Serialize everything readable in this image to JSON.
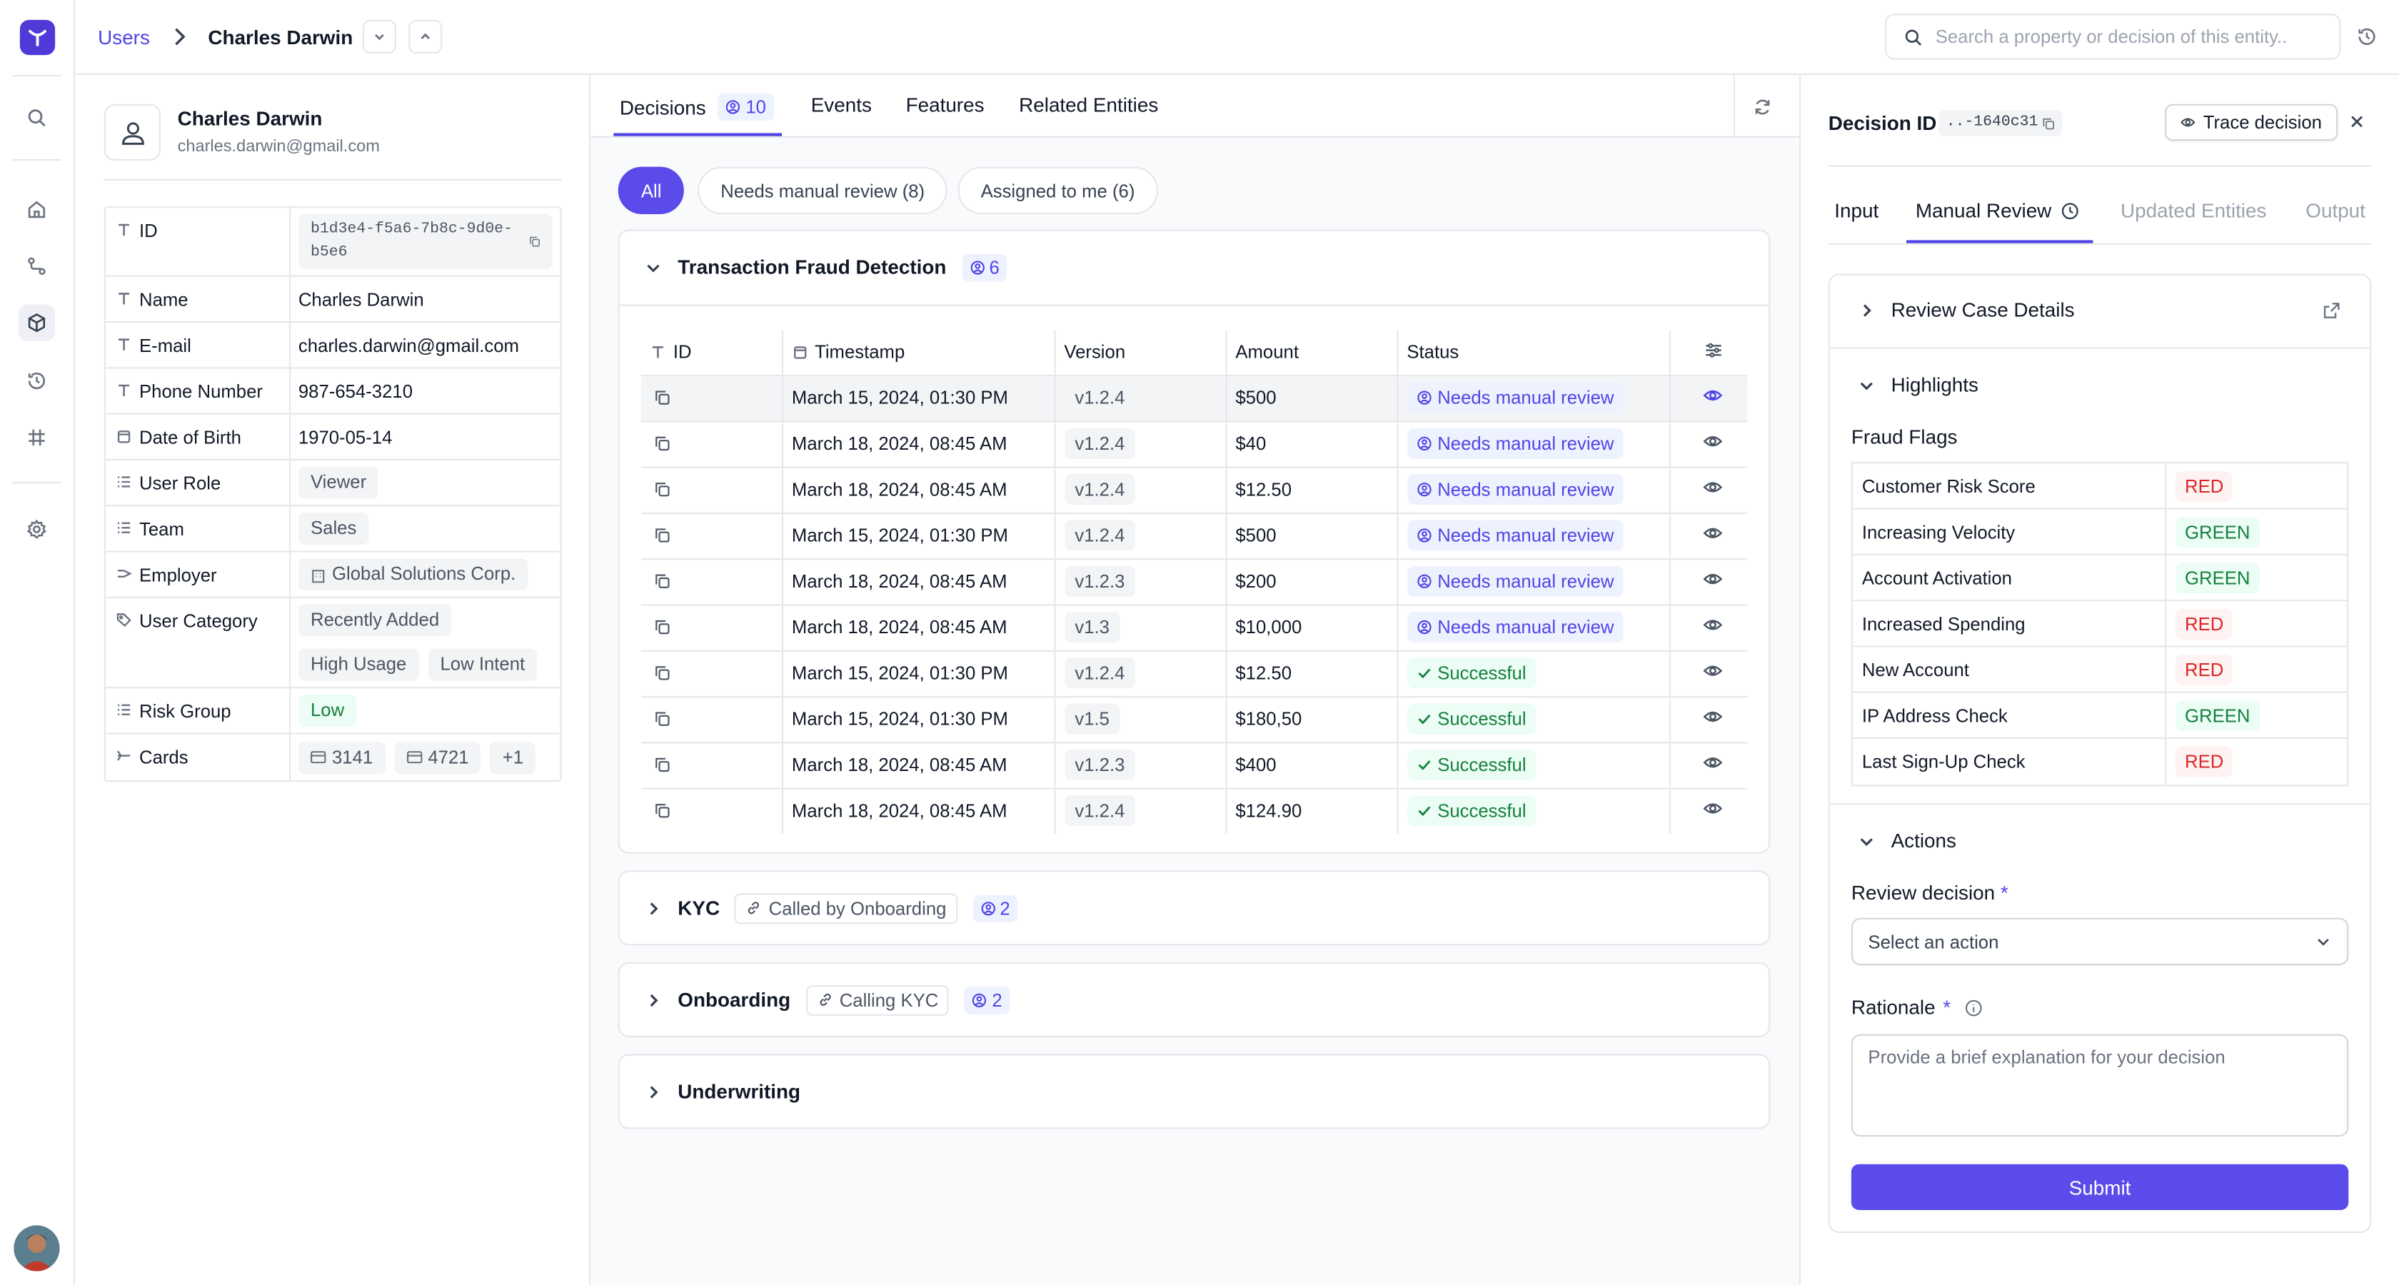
{
  "breadcrumb": {
    "parent": "Users",
    "current": "Charles Darwin"
  },
  "search": {
    "placeholder": "Search a property or decision of this entity.."
  },
  "profile": {
    "name": "Charles Darwin",
    "email": "charles.darwin@gmail.com",
    "properties": [
      {
        "key": "ID",
        "icon": "text-icon",
        "value": "b1d3e4-f5a6-7b8c-9d0e-b5e6"
      },
      {
        "key": "Name",
        "icon": "text-icon",
        "value": "Charles Darwin"
      },
      {
        "key": "E-mail",
        "icon": "text-icon",
        "value": "charles.darwin@gmail.com"
      },
      {
        "key": "Phone Number",
        "icon": "text-icon",
        "value": "987-654-3210"
      },
      {
        "key": "Date of Birth",
        "icon": "calendar-icon",
        "value": "1970-05-14"
      },
      {
        "key": "User Role",
        "icon": "list-icon",
        "value": "Viewer"
      },
      {
        "key": "Team",
        "icon": "list-icon",
        "value": "Sales"
      },
      {
        "key": "Employer",
        "icon": "relation-icon",
        "value": "Global Solutions Corp."
      },
      {
        "key": "User Category",
        "icon": "tag-icon",
        "values": [
          "Recently Added",
          "High Usage",
          "Low Intent"
        ]
      },
      {
        "key": "Risk Group",
        "icon": "list-icon",
        "value": "Low"
      },
      {
        "key": "Cards",
        "icon": "relation-many-icon",
        "values": [
          "3141",
          "4721",
          "+1"
        ]
      }
    ]
  },
  "decisions": {
    "tabs": [
      {
        "label": "Decisions",
        "count": "10"
      },
      {
        "label": "Events"
      },
      {
        "label": "Features"
      },
      {
        "label": "Related Entities"
      }
    ],
    "filters": [
      "All",
      "Needs manual review (8)",
      "Assigned to me (6)"
    ],
    "groups": [
      {
        "title": "Transaction Fraud Detection",
        "count": "6",
        "columns": [
          "ID",
          "Timestamp",
          "Version",
          "Amount",
          "Status"
        ],
        "rows": [
          {
            "timestamp": "March 15, 2024, 01:30 PM",
            "version": "v1.2.4",
            "amount": "$500",
            "status": "Needs manual review",
            "status_type": "review"
          },
          {
            "timestamp": "March 18, 2024, 08:45 AM",
            "version": "v1.2.4",
            "amount": "$40",
            "status": "Needs manual review",
            "status_type": "review"
          },
          {
            "timestamp": "March 18, 2024, 08:45 AM",
            "version": "v1.2.4",
            "amount": "$12.50",
            "status": "Needs manual review",
            "status_type": "review"
          },
          {
            "timestamp": "March 15, 2024, 01:30 PM",
            "version": "v1.2.4",
            "amount": "$500",
            "status": "Needs manual review",
            "status_type": "review"
          },
          {
            "timestamp": "March 18, 2024, 08:45 AM",
            "version": "v1.2.3",
            "amount": "$200",
            "status": "Needs manual review",
            "status_type": "review"
          },
          {
            "timestamp": "March 18, 2024, 08:45 AM",
            "version": "v1.3",
            "amount": "$10,000",
            "status": "Needs manual review",
            "status_type": "review"
          },
          {
            "timestamp": "March 15, 2024, 01:30 PM",
            "version": "v1.2.4",
            "amount": "$12.50",
            "status": "Successful",
            "status_type": "success"
          },
          {
            "timestamp": "March 15, 2024, 01:30 PM",
            "version": "v1.5",
            "amount": "$180,50",
            "status": "Successful",
            "status_type": "success"
          },
          {
            "timestamp": "March 18, 2024, 08:45 AM",
            "version": "v1.2.3",
            "amount": "$400",
            "status": "Successful",
            "status_type": "success"
          },
          {
            "timestamp": "March 18, 2024, 08:45 AM",
            "version": "v1.2.4",
            "amount": "$124.90",
            "status": "Successful",
            "status_type": "success"
          }
        ]
      },
      {
        "title": "KYC",
        "reference": "Called by Onboarding",
        "count": "2"
      },
      {
        "title": "Onboarding",
        "reference": "Calling KYC",
        "count": "2"
      },
      {
        "title": "Underwriting"
      }
    ]
  },
  "panel": {
    "title": "Decision ID",
    "decision_id": "..-1640c31",
    "trace_label": "Trace decision",
    "tabs": [
      "Input",
      "Manual Review",
      "Updated Entities",
      "Output"
    ],
    "review_case_label": "Review Case Details",
    "highlights_label": "Highlights",
    "fraud_flags_label": "Fraud Flags",
    "fraud_flags": [
      {
        "name": "Customer Risk Score",
        "value": "RED"
      },
      {
        "name": "Increasing Velocity",
        "value": "GREEN"
      },
      {
        "name": "Account Activation",
        "value": "GREEN"
      },
      {
        "name": "Increased Spending",
        "value": "RED"
      },
      {
        "name": "New Account",
        "value": "RED"
      },
      {
        "name": "IP Address Check",
        "value": "GREEN"
      },
      {
        "name": "Last Sign-Up Check",
        "value": "RED"
      }
    ],
    "actions_label": "Actions",
    "review_decision_label": "Review decision",
    "review_decision_placeholder": "Select an action",
    "rationale_label": "Rationale",
    "rationale_placeholder": "Provide a brief explanation for your decision",
    "submit_label": "Submit"
  },
  "colors": {
    "accent": "#4f46e5",
    "primary_button": "#5b4bea",
    "red": "#dc2626",
    "green": "#15803d"
  }
}
